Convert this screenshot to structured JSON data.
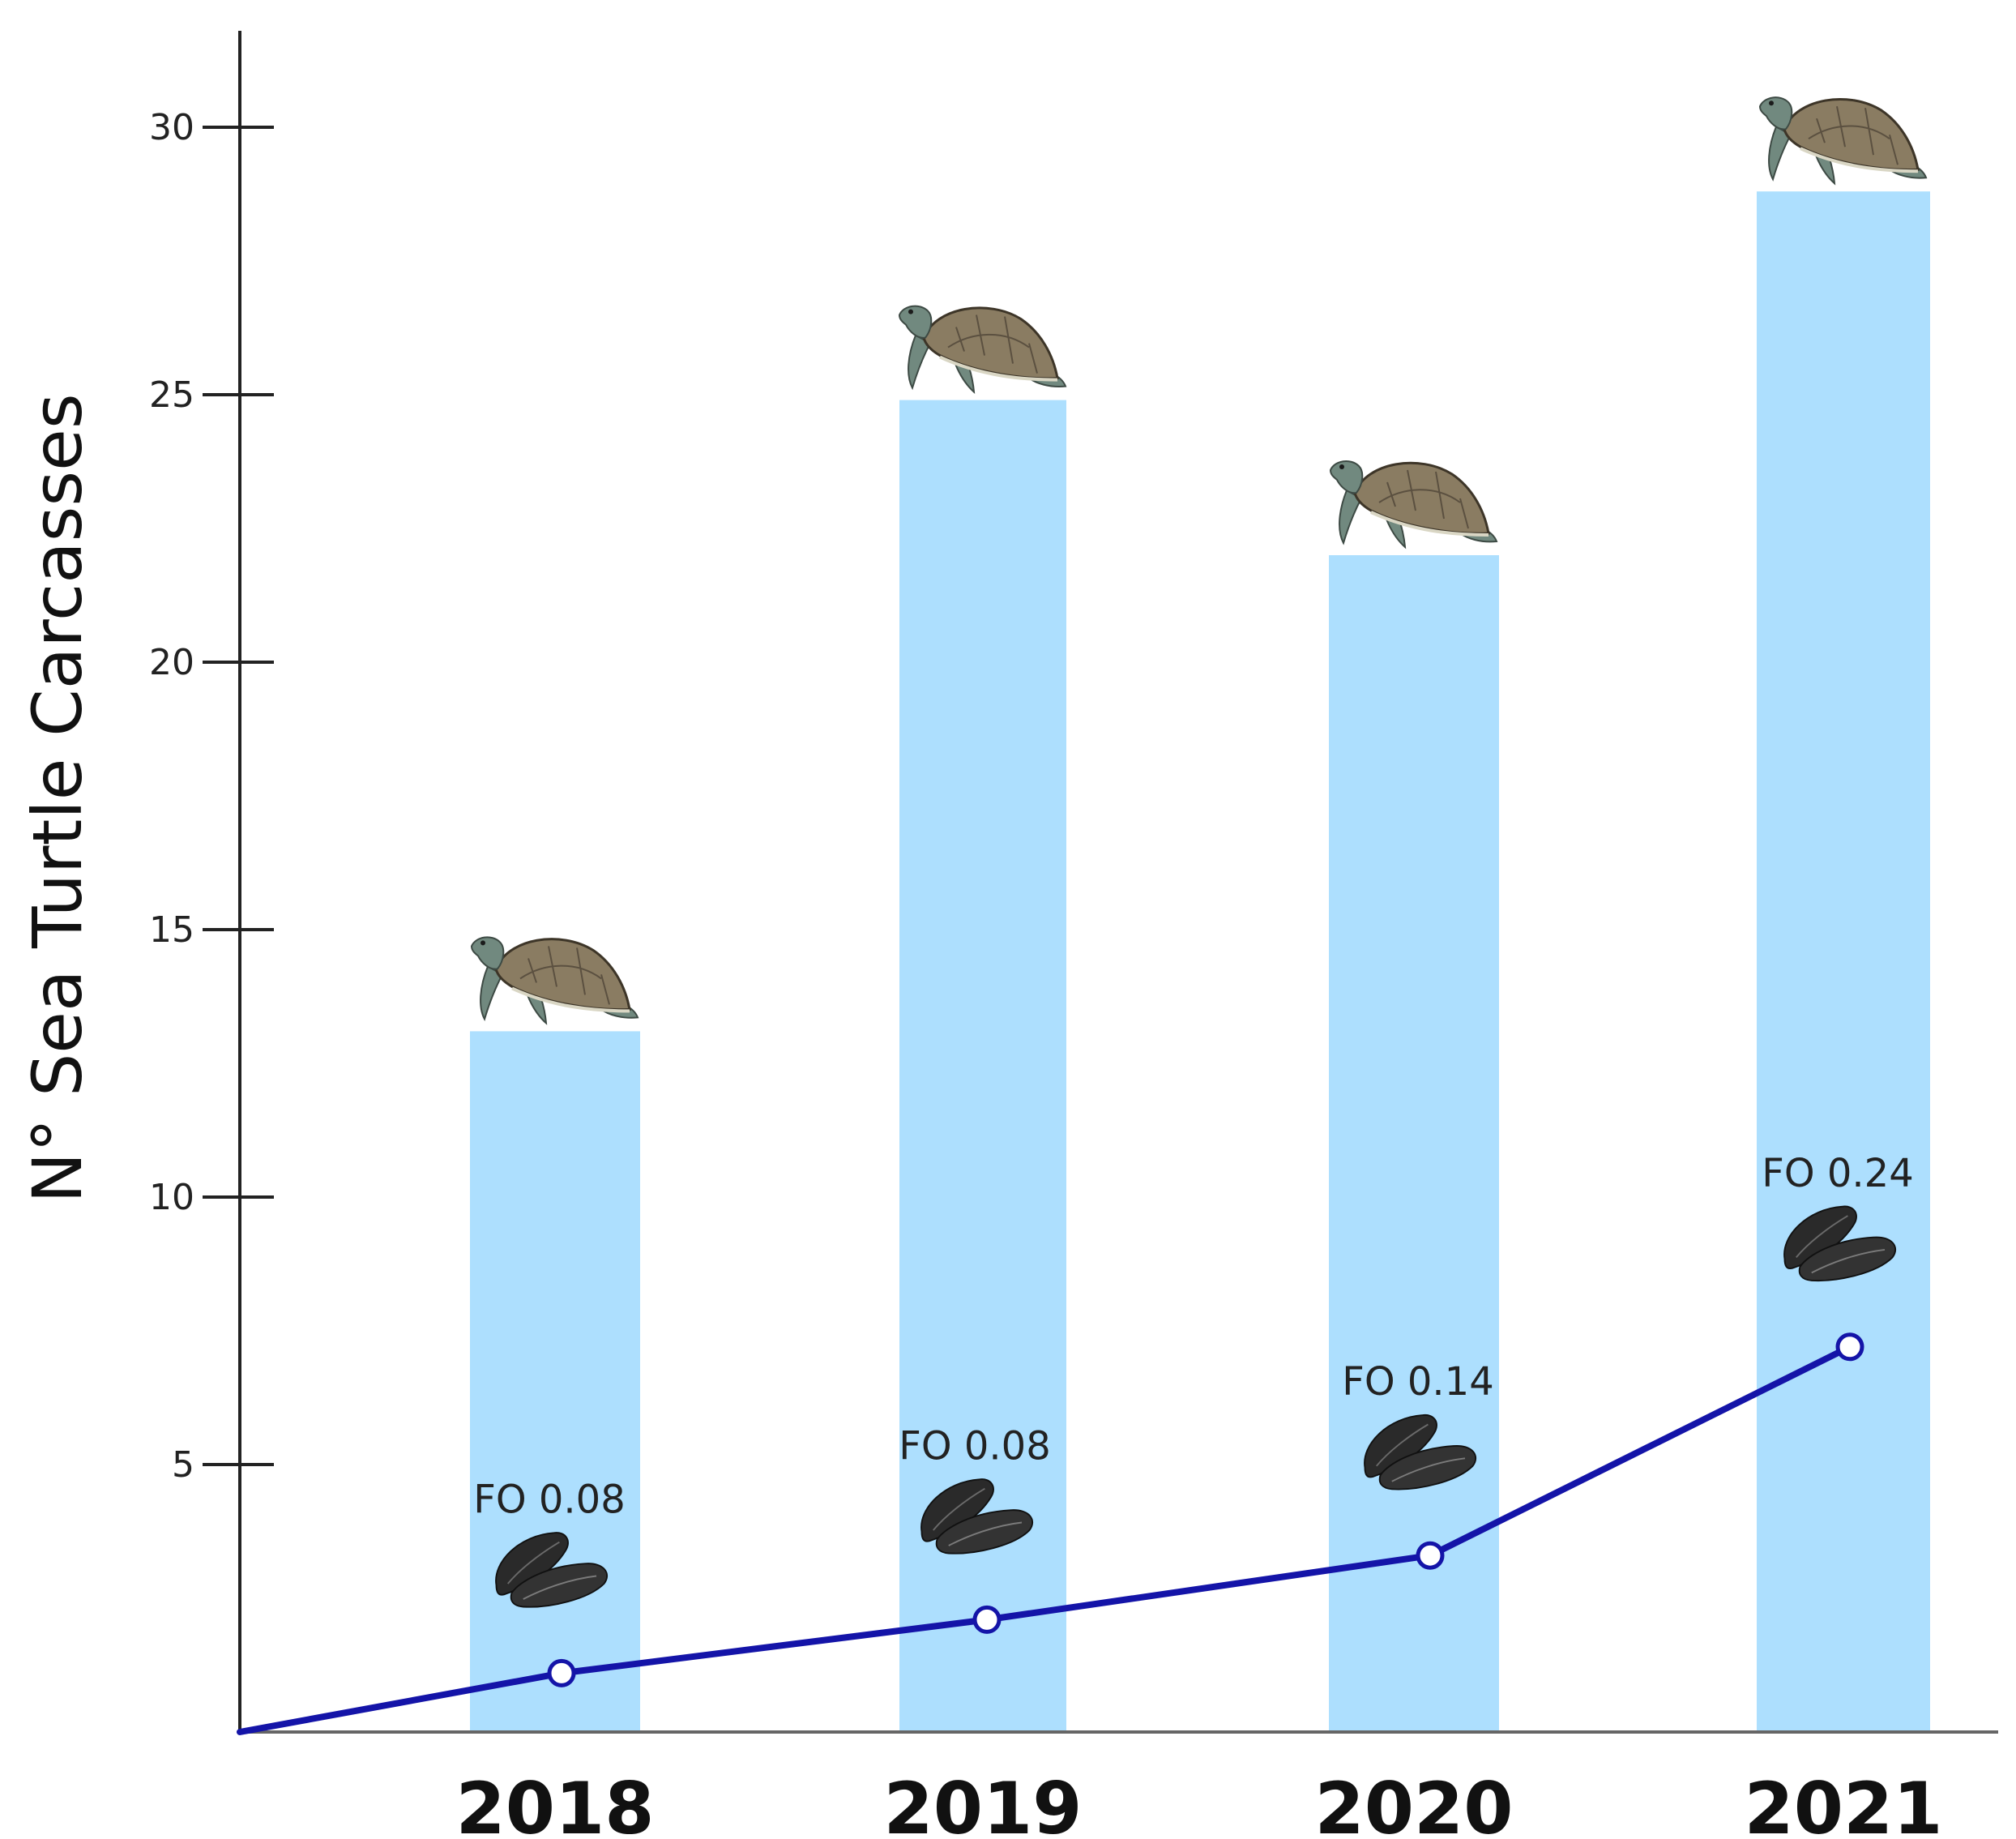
{
  "chart_data": {
    "type": "bar",
    "categories": [
      "2018",
      "2019",
      "2020",
      "2021"
    ],
    "values": [
      13.1,
      24.9,
      22.0,
      28.8
    ],
    "ylabel": "N° Sea Turtle Carcasses",
    "xlabel": "",
    "ylim": [
      0,
      31.8
    ],
    "yticks": [
      5,
      10,
      15,
      20,
      25,
      30
    ],
    "grid": false,
    "bar_color": "#ADDFFE",
    "bar_icon": "sea-turtle-icon",
    "line_series": {
      "values": [
        1.1,
        2.1,
        3.3,
        7.2
      ],
      "start_value": 0.0,
      "line_color": "#1414A8",
      "marker": "open-circle",
      "labels": [
        "FO 0.08",
        "FO 0.08",
        "FO 0.14",
        "FO 0.24"
      ],
      "icon": "mussel-icon"
    }
  }
}
